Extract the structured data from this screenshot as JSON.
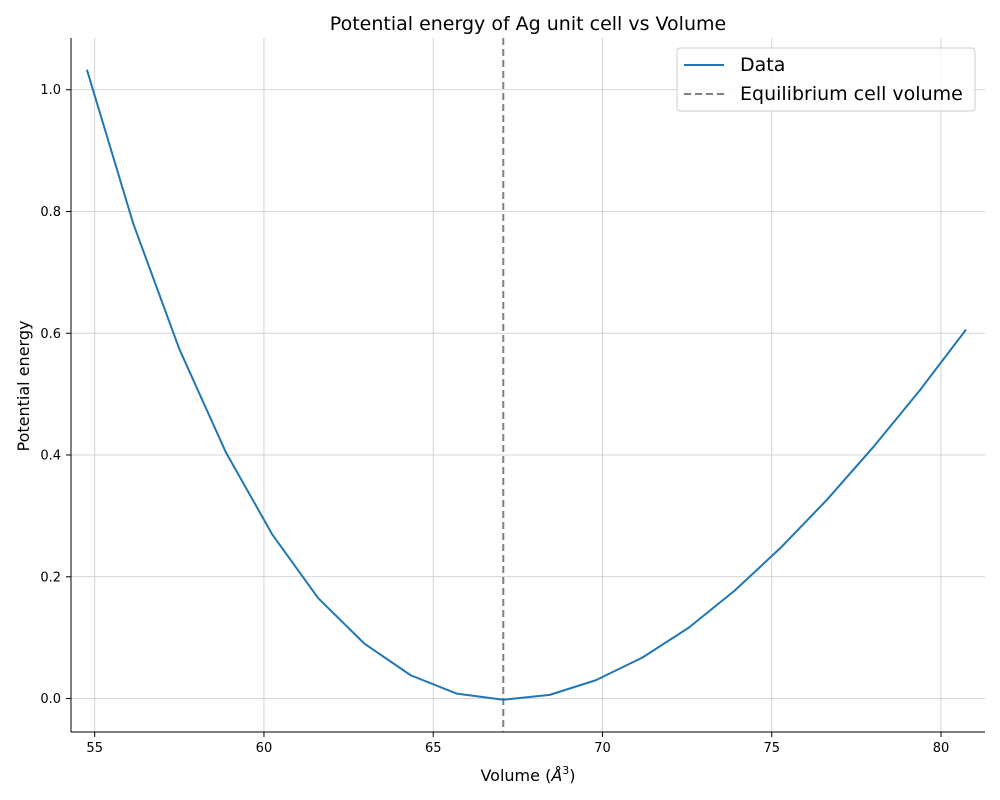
{
  "chart_data": {
    "type": "line",
    "title": "Potential energy of Ag unit cell vs Volume",
    "xlabel_main": "Volume (",
    "xlabel_unit": "Å",
    "xlabel_sup": "3",
    "xlabel_end": ")",
    "ylabel": "Potential energy",
    "xlim": [
      54.3,
      81.3
    ],
    "ylim": [
      -0.055,
      1.085
    ],
    "xticks": [
      55,
      60,
      65,
      70,
      75,
      80
    ],
    "yticks": [
      0.0,
      0.2,
      0.4,
      0.6,
      0.8,
      1.0
    ],
    "xtick_labels": [
      "55",
      "60",
      "65",
      "70",
      "75",
      "80"
    ],
    "ytick_labels": [
      "0.0",
      "0.2",
      "0.4",
      "0.6",
      "0.8",
      "1.0"
    ],
    "grid": true,
    "legend_position": "top-right",
    "series": [
      {
        "name": "Data",
        "color": "#1f77b4",
        "style": "solid",
        "x": [
          54.77,
          56.14,
          57.5,
          58.87,
          60.24,
          61.6,
          62.97,
          64.34,
          65.7,
          67.07,
          68.44,
          69.8,
          71.17,
          72.54,
          73.9,
          75.27,
          76.64,
          78.0,
          79.37,
          80.74
        ],
        "y": [
          1.033,
          0.78,
          0.574,
          0.405,
          0.27,
          0.165,
          0.09,
          0.038,
          0.008,
          -0.002,
          0.006,
          0.03,
          0.067,
          0.116,
          0.177,
          0.248,
          0.327,
          0.413,
          0.506,
          0.606
        ]
      },
      {
        "name": "Equilibrium cell volume",
        "color": "#7f7f7f",
        "style": "dashed",
        "vline_x": 67.07
      }
    ]
  }
}
